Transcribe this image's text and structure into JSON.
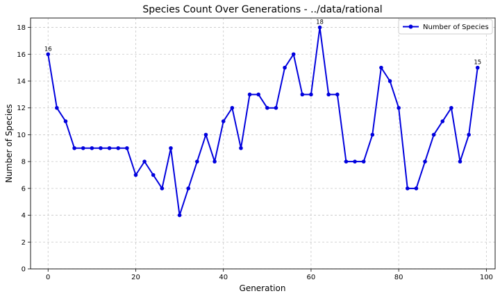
{
  "chart_data": {
    "type": "line",
    "title": "Species Count Over Generations - ../data/rational",
    "xlabel": "Generation",
    "ylabel": "Number of Species",
    "xlim": [
      -4,
      102
    ],
    "ylim": [
      0,
      18.7
    ],
    "xticks": [
      0,
      20,
      40,
      60,
      80,
      100
    ],
    "yticks": [
      0,
      2,
      4,
      6,
      8,
      10,
      12,
      14,
      16,
      18
    ],
    "grid": true,
    "legend_position": "top-right",
    "series": [
      {
        "name": "Number of Species",
        "color": "#0000dd",
        "marker": "circle",
        "x": [
          0,
          2,
          4,
          6,
          8,
          10,
          12,
          14,
          16,
          18,
          20,
          22,
          24,
          26,
          28,
          30,
          32,
          34,
          36,
          38,
          40,
          42,
          44,
          46,
          48,
          50,
          52,
          54,
          56,
          58,
          60,
          62,
          64,
          66,
          68,
          70,
          72,
          74,
          76,
          78,
          80,
          82,
          84,
          86,
          88,
          90,
          92,
          94,
          96,
          98
        ],
        "y": [
          16,
          12,
          11,
          9,
          9,
          9,
          9,
          9,
          9,
          9,
          7,
          8,
          7,
          6,
          9,
          4,
          6,
          8,
          10,
          8,
          11,
          12,
          9,
          13,
          13,
          12,
          12,
          15,
          16,
          13,
          13,
          18,
          13,
          13,
          8,
          8,
          8,
          10,
          15,
          14,
          12,
          6,
          6,
          8,
          10,
          11,
          12,
          8,
          10,
          15
        ]
      }
    ],
    "annotations": [
      {
        "x": 0,
        "y": 16,
        "text": "16"
      },
      {
        "x": 62,
        "y": 18,
        "text": "18"
      },
      {
        "x": 98,
        "y": 15,
        "text": "15"
      }
    ]
  }
}
